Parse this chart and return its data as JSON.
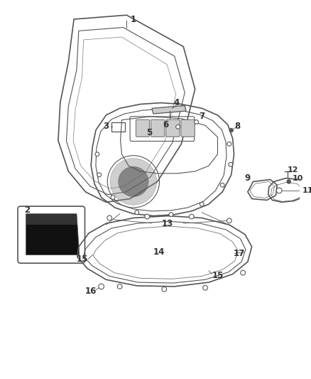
{
  "bg_color": "#ffffff",
  "fig_width": 4.38,
  "fig_height": 5.33,
  "dpi": 100,
  "line_color": "#555555",
  "label_color": "#333333",
  "label_fontsize": 8.5,
  "dark_fill": "#1a1a1a",
  "gray_fill": "#aaaaaa",
  "light_gray": "#dddddd"
}
